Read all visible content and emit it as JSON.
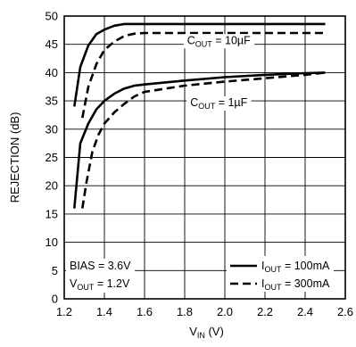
{
  "chart_data": {
    "type": "line",
    "xlabel": "V",
    "xlabel_sub": "IN",
    "xlabel_unit": " (V)",
    "ylabel": "REJECTION (dB)",
    "xlim": [
      1.2,
      2.6
    ],
    "ylim": [
      0,
      50
    ],
    "x_ticks": [
      1.2,
      1.4,
      1.6,
      1.8,
      2.0,
      2.2,
      2.4,
      2.6
    ],
    "x_tick_labels": [
      "1.2",
      "1.4",
      "1.6",
      "1.8",
      "2.0",
      "2.2",
      "2.4",
      "2.6"
    ],
    "y_ticks": [
      0,
      5,
      10,
      15,
      20,
      25,
      30,
      35,
      40,
      45,
      50
    ],
    "y_tick_labels": [
      "0",
      "5",
      "10",
      "15",
      "20",
      "25",
      "30",
      "35",
      "40",
      "45",
      "50"
    ],
    "grid": true,
    "series": [
      {
        "name": "IOUT = 100mA, COUT = 10µF",
        "style": "solid",
        "x": [
          1.25,
          1.28,
          1.32,
          1.36,
          1.4,
          1.45,
          1.5,
          1.55,
          1.6,
          2.0,
          2.5
        ],
        "y": [
          34.0,
          41.0,
          44.8,
          46.8,
          47.6,
          48.3,
          48.6,
          48.6,
          48.6,
          48.6,
          48.6
        ]
      },
      {
        "name": "IOUT = 300mA, COUT = 10µF",
        "style": "dashed",
        "x": [
          1.29,
          1.32,
          1.36,
          1.4,
          1.45,
          1.5,
          1.55,
          1.6,
          2.0,
          2.5
        ],
        "y": [
          32.0,
          37.5,
          41.5,
          44.0,
          45.5,
          46.5,
          46.9,
          47.0,
          47.0,
          47.0
        ]
      },
      {
        "name": "IOUT = 100mA, COUT = 1µF",
        "style": "solid",
        "x": [
          1.25,
          1.28,
          1.32,
          1.36,
          1.4,
          1.45,
          1.5,
          1.55,
          1.6,
          1.8,
          2.0,
          2.2,
          2.4,
          2.5
        ],
        "y": [
          16.0,
          27.5,
          31.0,
          33.5,
          35.0,
          36.3,
          37.2,
          37.7,
          37.9,
          38.6,
          39.2,
          39.6,
          39.9,
          40.0
        ]
      },
      {
        "name": "IOUT = 300mA, COUT = 1µF",
        "style": "dashed",
        "x": [
          1.29,
          1.31,
          1.34,
          1.37,
          1.4,
          1.45,
          1.5,
          1.55,
          1.6,
          1.8,
          2.0,
          2.2,
          2.4,
          2.5
        ],
        "y": [
          16.0,
          20.5,
          26.0,
          29.0,
          31.0,
          33.0,
          34.5,
          35.8,
          36.6,
          37.7,
          38.4,
          39.0,
          39.6,
          40.0
        ]
      }
    ],
    "annotations": {
      "cout_10": {
        "pre": "C",
        "sub": "OUT",
        "post": " = 10µF",
        "x": 1.97,
        "y": 45.7
      },
      "cout_1": {
        "pre": "C",
        "sub": "OUT",
        "post": " = 1µF",
        "x": 1.97,
        "y": 34.7
      },
      "bias_line1": "BIAS = 3.6V",
      "bias_line2_pre": "V",
      "bias_line2_sub": "OUT",
      "bias_line2_post": " = 1.2V"
    },
    "legend": {
      "placement": "bottom-right",
      "items": [
        {
          "style": "solid",
          "pre": "I",
          "sub": "OUT",
          "post": " = 100mA"
        },
        {
          "style": "dashed",
          "pre": "I",
          "sub": "OUT",
          "post": " = 300mA"
        }
      ]
    }
  }
}
